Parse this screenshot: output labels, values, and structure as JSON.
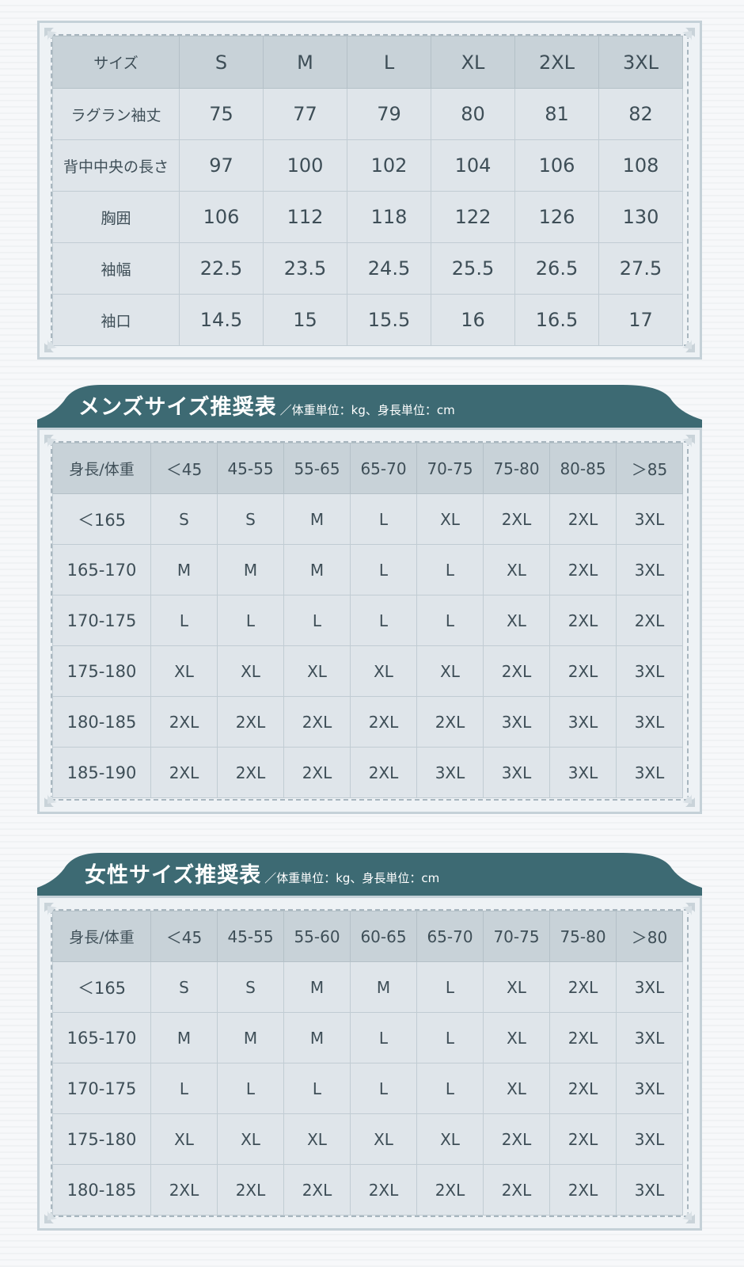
{
  "table1": {
    "headers": [
      "サイズ",
      "S",
      "M",
      "L",
      "XL",
      "2XL",
      "3XL"
    ],
    "rows": [
      [
        "ラグラン袖丈",
        "75",
        "77",
        "79",
        "80",
        "81",
        "82"
      ],
      [
        "背中中央の長さ",
        "97",
        "100",
        "102",
        "104",
        "106",
        "108"
      ],
      [
        "胸囲",
        "106",
        "112",
        "118",
        "122",
        "126",
        "130"
      ],
      [
        "袖幅",
        "22.5",
        "23.5",
        "24.5",
        "25.5",
        "26.5",
        "27.5"
      ],
      [
        "袖口",
        "14.5",
        "15",
        "15.5",
        "16",
        "16.5",
        "17"
      ]
    ]
  },
  "mens": {
    "title": "メンズサイズ推奨表",
    "unit_note": "／体重単位：kg、身長単位：cm",
    "headers": [
      "身長/体重",
      "＜45",
      "45-55",
      "55-65",
      "65-70",
      "70-75",
      "75-80",
      "80-85",
      "＞85"
    ],
    "rows": [
      [
        "＜165",
        "S",
        "S",
        "M",
        "L",
        "XL",
        "2XL",
        "2XL",
        "3XL"
      ],
      [
        "165-170",
        "M",
        "M",
        "M",
        "L",
        "L",
        "XL",
        "2XL",
        "3XL"
      ],
      [
        "170-175",
        "L",
        "L",
        "L",
        "L",
        "L",
        "XL",
        "2XL",
        "2XL"
      ],
      [
        "175-180",
        "XL",
        "XL",
        "XL",
        "XL",
        "XL",
        "2XL",
        "2XL",
        "3XL"
      ],
      [
        "180-185",
        "2XL",
        "2XL",
        "2XL",
        "2XL",
        "2XL",
        "3XL",
        "3XL",
        "3XL"
      ],
      [
        "185-190",
        "2XL",
        "2XL",
        "2XL",
        "2XL",
        "3XL",
        "3XL",
        "3XL",
        "3XL"
      ]
    ]
  },
  "womens": {
    "title": "女性サイズ推奨表",
    "unit_note": "／体重単位：kg、身長単位：cm",
    "headers": [
      "身長/体重",
      "＜45",
      "45-55",
      "55-60",
      "60-65",
      "65-70",
      "70-75",
      "75-80",
      "＞80"
    ],
    "rows": [
      [
        "＜165",
        "S",
        "S",
        "M",
        "M",
        "L",
        "XL",
        "2XL",
        "3XL"
      ],
      [
        "165-170",
        "M",
        "M",
        "M",
        "L",
        "L",
        "XL",
        "2XL",
        "3XL"
      ],
      [
        "170-175",
        "L",
        "L",
        "L",
        "L",
        "L",
        "XL",
        "2XL",
        "3XL"
      ],
      [
        "175-180",
        "XL",
        "XL",
        "XL",
        "XL",
        "XL",
        "2XL",
        "2XL",
        "3XL"
      ],
      [
        "180-185",
        "2XL",
        "2XL",
        "2XL",
        "2XL",
        "2XL",
        "2XL",
        "2XL",
        "3XL"
      ]
    ]
  },
  "colors": {
    "banner": "#3d6a73",
    "header_cell": "#c8d2d8",
    "body_cell": "#dfe5ea",
    "panel_border": "#c5d1d8"
  }
}
